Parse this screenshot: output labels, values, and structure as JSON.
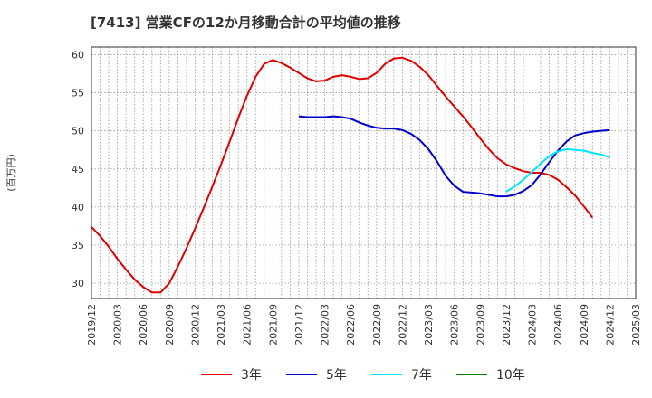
{
  "title": "[7413]  営業CFの12か月移動合計の平均値の推移",
  "chart_data": {
    "type": "line",
    "ylabel": "(百万円)",
    "xlabel": "",
    "ylim": [
      28,
      61
    ],
    "yticks": [
      30,
      35,
      40,
      45,
      50,
      55,
      60
    ],
    "xrange": [
      "2019/12",
      "2025/03"
    ],
    "xticks": [
      "2019/12",
      "2020/03",
      "2020/06",
      "2020/09",
      "2020/12",
      "2021/03",
      "2021/06",
      "2021/09",
      "2021/12",
      "2022/03",
      "2022/06",
      "2022/09",
      "2022/12",
      "2023/03",
      "2023/06",
      "2023/09",
      "2023/12",
      "2024/03",
      "2024/06",
      "2024/09",
      "2024/12",
      "2025/03"
    ],
    "grid": true,
    "legend_position": "bottom",
    "series": [
      {
        "name": "3年",
        "color": "#e00000",
        "points": [
          [
            "2019/12",
            37.4
          ],
          [
            "2020/01",
            36.2
          ],
          [
            "2020/02",
            34.8
          ],
          [
            "2020/03",
            33.2
          ],
          [
            "2020/04",
            31.8
          ],
          [
            "2020/05",
            30.5
          ],
          [
            "2020/06",
            29.5
          ],
          [
            "2020/07",
            28.8
          ],
          [
            "2020/08",
            28.8
          ],
          [
            "2020/09",
            30.0
          ],
          [
            "2020/10",
            32.2
          ],
          [
            "2020/11",
            34.6
          ],
          [
            "2020/12",
            37.2
          ],
          [
            "2021/01",
            39.9
          ],
          [
            "2021/02",
            42.7
          ],
          [
            "2021/03",
            45.6
          ],
          [
            "2021/04",
            48.6
          ],
          [
            "2021/05",
            51.7
          ],
          [
            "2021/06",
            54.6
          ],
          [
            "2021/07",
            57.1
          ],
          [
            "2021/08",
            58.8
          ],
          [
            "2021/09",
            59.3
          ],
          [
            "2021/10",
            58.9
          ],
          [
            "2021/11",
            58.3
          ],
          [
            "2021/12",
            57.6
          ],
          [
            "2022/01",
            56.9
          ],
          [
            "2022/02",
            56.5
          ],
          [
            "2022/03",
            56.6
          ],
          [
            "2022/04",
            57.1
          ],
          [
            "2022/05",
            57.3
          ],
          [
            "2022/06",
            57.1
          ],
          [
            "2022/07",
            56.8
          ],
          [
            "2022/08",
            56.9
          ],
          [
            "2022/09",
            57.6
          ],
          [
            "2022/10",
            58.8
          ],
          [
            "2022/11",
            59.5
          ],
          [
            "2022/12",
            59.6
          ],
          [
            "2023/01",
            59.2
          ],
          [
            "2023/02",
            58.4
          ],
          [
            "2023/03",
            57.3
          ],
          [
            "2023/04",
            55.9
          ],
          [
            "2023/05",
            54.5
          ],
          [
            "2023/06",
            53.2
          ],
          [
            "2023/07",
            51.9
          ],
          [
            "2023/08",
            50.5
          ],
          [
            "2023/09",
            49.0
          ],
          [
            "2023/10",
            47.6
          ],
          [
            "2023/11",
            46.4
          ],
          [
            "2023/12",
            45.6
          ],
          [
            "2024/01",
            45.1
          ],
          [
            "2024/02",
            44.7
          ],
          [
            "2024/03",
            44.5
          ],
          [
            "2024/04",
            44.5
          ],
          [
            "2024/05",
            44.2
          ],
          [
            "2024/06",
            43.6
          ],
          [
            "2024/07",
            42.6
          ],
          [
            "2024/08",
            41.5
          ],
          [
            "2024/09",
            40.1
          ],
          [
            "2024/10",
            38.6
          ]
        ]
      },
      {
        "name": "5年",
        "color": "#0000cc",
        "points": [
          [
            "2021/12",
            51.9
          ],
          [
            "2022/01",
            51.8
          ],
          [
            "2022/02",
            51.8
          ],
          [
            "2022/03",
            51.8
          ],
          [
            "2022/04",
            51.9
          ],
          [
            "2022/05",
            51.8
          ],
          [
            "2022/06",
            51.6
          ],
          [
            "2022/07",
            51.1
          ],
          [
            "2022/08",
            50.7
          ],
          [
            "2022/09",
            50.4
          ],
          [
            "2022/10",
            50.3
          ],
          [
            "2022/11",
            50.3
          ],
          [
            "2022/12",
            50.1
          ],
          [
            "2023/01",
            49.6
          ],
          [
            "2023/02",
            48.8
          ],
          [
            "2023/03",
            47.6
          ],
          [
            "2023/04",
            46.0
          ],
          [
            "2023/05",
            44.1
          ],
          [
            "2023/06",
            42.8
          ],
          [
            "2023/07",
            42.0
          ],
          [
            "2023/08",
            41.9
          ],
          [
            "2023/09",
            41.8
          ],
          [
            "2023/10",
            41.6
          ],
          [
            "2023/11",
            41.4
          ],
          [
            "2023/12",
            41.4
          ],
          [
            "2024/01",
            41.6
          ],
          [
            "2024/02",
            42.1
          ],
          [
            "2024/03",
            42.9
          ],
          [
            "2024/04",
            44.3
          ],
          [
            "2024/05",
            45.9
          ],
          [
            "2024/06",
            47.4
          ],
          [
            "2024/07",
            48.6
          ],
          [
            "2024/08",
            49.4
          ],
          [
            "2024/09",
            49.7
          ],
          [
            "2024/10",
            49.9
          ],
          [
            "2024/11",
            50.0
          ],
          [
            "2024/12",
            50.1
          ]
        ]
      },
      {
        "name": "7年",
        "color": "#00e5ff",
        "points": [
          [
            "2023/12",
            42.0
          ],
          [
            "2024/01",
            42.7
          ],
          [
            "2024/02",
            43.6
          ],
          [
            "2024/03",
            44.6
          ],
          [
            "2024/04",
            45.7
          ],
          [
            "2024/05",
            46.7
          ],
          [
            "2024/06",
            47.3
          ],
          [
            "2024/07",
            47.6
          ],
          [
            "2024/08",
            47.5
          ],
          [
            "2024/09",
            47.4
          ],
          [
            "2024/10",
            47.1
          ],
          [
            "2024/11",
            46.9
          ],
          [
            "2024/12",
            46.5
          ]
        ]
      },
      {
        "name": "10年",
        "color": "#008000",
        "points": []
      }
    ]
  }
}
